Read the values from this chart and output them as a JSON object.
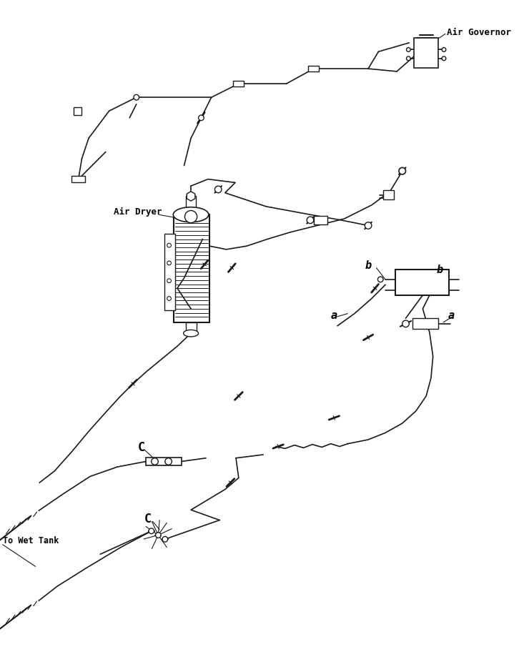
{
  "title": "",
  "background_color": "#ffffff",
  "line_color": "#1a1a1a",
  "text_color": "#000000",
  "labels": {
    "air_governor": "Air Governor",
    "air_dryer": "Air Dryer",
    "to_wet_tank": "To Wet Tank",
    "a1": "a",
    "b1": "b",
    "b2": "b",
    "a2": "a",
    "c1": "C",
    "c2": "C"
  },
  "figsize": [
    7.26,
    9.4
  ],
  "dpi": 100
}
